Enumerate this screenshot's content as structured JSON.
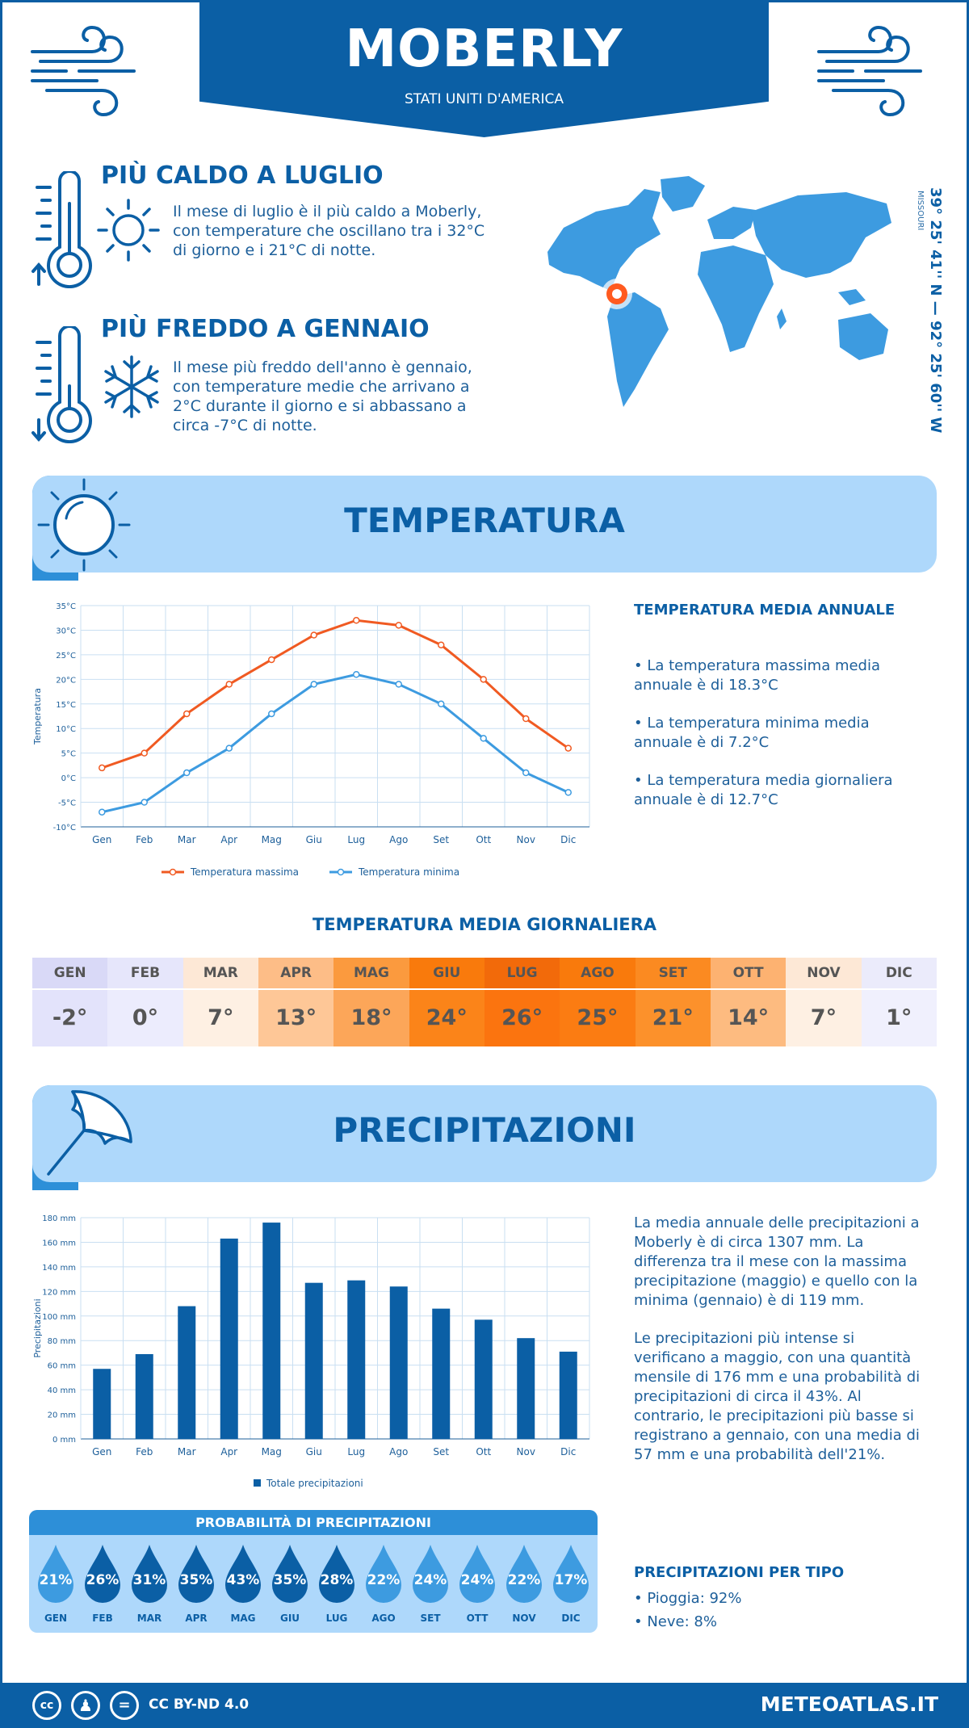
{
  "header": {
    "city": "MOBERLY",
    "country": "STATI UNITI D'AMERICA"
  },
  "facts": {
    "hot_title": "PIÙ CALDO A LUGLIO",
    "hot_text": "Il mese di luglio è il più caldo a Moberly, con temperature che oscillano tra i 32°C di giorno e i 21°C di notte.",
    "cold_title": "PIÙ FREDDO A GENNAIO",
    "cold_text": "Il mese più freddo dell'anno è gennaio, con temperature medie che arrivano a 2°C durante il giorno e si abbassano a circa -7°C di notte."
  },
  "map": {
    "coordinates": "39° 25' 41'' N — 92° 25' 60'' W",
    "state": "MISSOURI"
  },
  "temperature_section": {
    "title": "TEMPERATURA",
    "annual_head": "TEMPERATURA MEDIA ANNUALE",
    "bullet_max": "• La temperatura massima media annuale è di 18.3°C",
    "bullet_min": "• La temperatura minima media annuale è di 7.2°C",
    "bullet_avg": "• La temperatura media giornaliera annuale è di 12.7°C"
  },
  "daily": {
    "title": "TEMPERATURA MEDIA GIORNALIERA",
    "cells": [
      {
        "month": "GEN",
        "value": "-2°",
        "head_color": "#d9d9f7",
        "val_color": "#e3e3fb"
      },
      {
        "month": "FEB",
        "value": "0°",
        "head_color": "#e6e6fb",
        "val_color": "#ececfd"
      },
      {
        "month": "MAR",
        "value": "7°",
        "head_color": "#fde8d6",
        "val_color": "#fef0e3"
      },
      {
        "month": "APR",
        "value": "13°",
        "head_color": "#fdbd87",
        "val_color": "#fec797"
      },
      {
        "month": "MAG",
        "value": "18°",
        "head_color": "#fb9a3e",
        "val_color": "#fca659"
      },
      {
        "month": "GIU",
        "value": "24°",
        "head_color": "#f97a0c",
        "val_color": "#fb8419"
      },
      {
        "month": "LUG",
        "value": "26°",
        "head_color": "#f26a0a",
        "val_color": "#fb740f"
      },
      {
        "month": "AGO",
        "value": "25°",
        "head_color": "#f97a0c",
        "val_color": "#fb7c12"
      },
      {
        "month": "SET",
        "value": "21°",
        "head_color": "#fb8a21",
        "val_color": "#fc912b"
      },
      {
        "month": "OTT",
        "value": "14°",
        "head_color": "#fdb271",
        "val_color": "#fdbb80"
      },
      {
        "month": "NOV",
        "value": "7°",
        "head_color": "#fde8d6",
        "val_color": "#fef0e3"
      },
      {
        "month": "DIC",
        "value": "1°",
        "head_color": "#ebebfb",
        "val_color": "#f0f0fd"
      }
    ]
  },
  "precip_section": {
    "title": "PRECIPITAZIONI",
    "para1": "La media annuale delle precipitazioni a Moberly è di circa 1307 mm. La differenza tra il mese con la massima precipitazione (maggio) e quello con la minima (gennaio) è di 119 mm.",
    "para2": "Le precipitazioni più intense si verificano a maggio, con una quantità mensile di 176 mm e una probabilità di precipitazioni di circa il 43%. Al contrario, le precipitazioni più basse si registrano a gennaio, con una media di 57 mm e una probabilità dell'21%.",
    "type_head": "PRECIPITAZIONI PER TIPO",
    "type_rain": "• Pioggia: 92%",
    "type_snow": "• Neve: 8%"
  },
  "probability": {
    "title": "PROBABILITÀ DI PRECIPITAZIONI",
    "items": [
      {
        "month": "GEN",
        "pct": "21%",
        "color": "#3d9be0"
      },
      {
        "month": "FEB",
        "pct": "26%",
        "color": "#0b5fa5"
      },
      {
        "month": "MAR",
        "pct": "31%",
        "color": "#0b5fa5"
      },
      {
        "month": "APR",
        "pct": "35%",
        "color": "#0b5fa5"
      },
      {
        "month": "MAG",
        "pct": "43%",
        "color": "#0b5fa5"
      },
      {
        "month": "GIU",
        "pct": "35%",
        "color": "#0b5fa5"
      },
      {
        "month": "LUG",
        "pct": "28%",
        "color": "#0b5fa5"
      },
      {
        "month": "AGO",
        "pct": "22%",
        "color": "#3d9be0"
      },
      {
        "month": "SET",
        "pct": "24%",
        "color": "#3d9be0"
      },
      {
        "month": "OTT",
        "pct": "24%",
        "color": "#3d9be0"
      },
      {
        "month": "NOV",
        "pct": "22%",
        "color": "#3d9be0"
      },
      {
        "month": "DIC",
        "pct": "17%",
        "color": "#3d9be0"
      }
    ]
  },
  "footer": {
    "license": "CC BY-ND 4.0",
    "site": "METEOATLAS.IT"
  },
  "chart_data": [
    {
      "type": "line",
      "categories": [
        "Gen",
        "Feb",
        "Mar",
        "Apr",
        "Mag",
        "Giu",
        "Lug",
        "Ago",
        "Set",
        "Ott",
        "Nov",
        "Dic"
      ],
      "series": [
        {
          "name": "Temperatura massima",
          "values": [
            2,
            5,
            13,
            19,
            24,
            29,
            32,
            31,
            27,
            20,
            12,
            6
          ],
          "color": "#f05a22"
        },
        {
          "name": "Temperatura minima",
          "values": [
            -7,
            -5,
            1,
            6,
            13,
            19,
            21,
            19,
            15,
            8,
            1,
            -3
          ],
          "color": "#3d9be0"
        }
      ],
      "ylabel": "Temperatura",
      "ylim": [
        -10,
        35
      ],
      "yticks": [
        -10,
        -5,
        0,
        5,
        10,
        15,
        20,
        25,
        30,
        35
      ],
      "ytick_suffix": "°C",
      "grid": true,
      "legend": "bottom"
    },
    {
      "type": "bar",
      "categories": [
        "Gen",
        "Feb",
        "Mar",
        "Apr",
        "Mag",
        "Giu",
        "Lug",
        "Ago",
        "Set",
        "Ott",
        "Nov",
        "Dic"
      ],
      "series": [
        {
          "name": "Totale precipitazioni",
          "values": [
            57,
            69,
            108,
            163,
            176,
            127,
            129,
            124,
            106,
            97,
            82,
            71
          ],
          "color": "#0b5fa5"
        }
      ],
      "ylabel": "Precipitazioni",
      "ylim": [
        0,
        180
      ],
      "yticks": [
        0,
        20,
        40,
        60,
        80,
        100,
        120,
        140,
        160,
        180
      ],
      "ytick_suffix": " mm",
      "grid": true,
      "legend": "bottom"
    }
  ]
}
